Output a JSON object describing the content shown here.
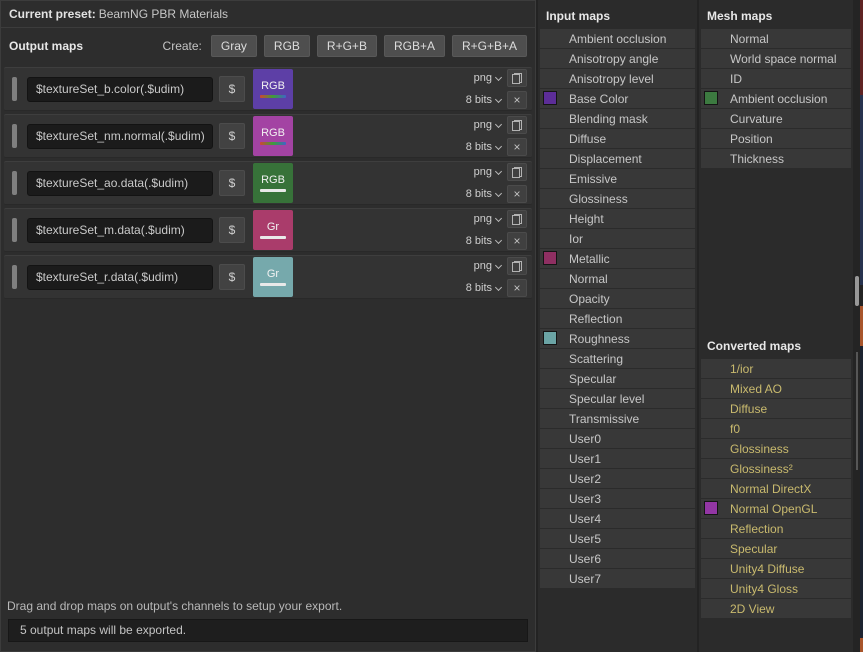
{
  "preset": {
    "label": "Current preset:",
    "value": "BeamNG PBR Materials"
  },
  "output_panel": {
    "title": "Output maps",
    "create_label": "Create:",
    "create_buttons": [
      "Gray",
      "RGB",
      "R+G+B",
      "RGB+A",
      "R+G+B+A"
    ],
    "dollar_label": "$",
    "rows": [
      {
        "filename": "$textureSet_b.color(.$udim)",
        "swatch_label": "RGB",
        "swatch_color": "#5d3fa6",
        "swatch_line": "rgb-gradient",
        "format": "png",
        "bit_depth": "8 bits"
      },
      {
        "filename": "$textureSet_nm.normal(.$udim)",
        "swatch_label": "RGB",
        "swatch_color": "#a343a3",
        "swatch_line": "rgb-gradient",
        "format": "png",
        "bit_depth": "8 bits"
      },
      {
        "filename": "$textureSet_ao.data(.$udim)",
        "swatch_label": "RGB",
        "swatch_color": "#377239",
        "swatch_line": "solid",
        "format": "png",
        "bit_depth": "8 bits"
      },
      {
        "filename": "$textureSet_m.data(.$udim)",
        "swatch_label": "Gr",
        "swatch_color": "#aa3c6b",
        "swatch_line": "solid",
        "format": "png",
        "bit_depth": "8 bits"
      },
      {
        "filename": "$textureSet_r.data(.$udim)",
        "swatch_label": "Gr",
        "swatch_color": "#76a9ac",
        "swatch_line": "solid",
        "format": "png",
        "bit_depth": "8 bits"
      }
    ],
    "hint": "Drag and drop maps on output's channels to setup your export.",
    "status": "5 output maps will be exported."
  },
  "input_maps": {
    "title": "Input maps",
    "items": [
      {
        "label": "Ambient occlusion"
      },
      {
        "label": "Anisotropy angle"
      },
      {
        "label": "Anisotropy level"
      },
      {
        "label": "Base Color",
        "swatch": "#5c2d98"
      },
      {
        "label": "Blending mask"
      },
      {
        "label": "Diffuse"
      },
      {
        "label": "Displacement"
      },
      {
        "label": "Emissive"
      },
      {
        "label": "Glossiness"
      },
      {
        "label": "Height"
      },
      {
        "label": "Ior"
      },
      {
        "label": "Metallic",
        "swatch": "#8f2f62"
      },
      {
        "label": "Normal"
      },
      {
        "label": "Opacity"
      },
      {
        "label": "Reflection"
      },
      {
        "label": "Roughness",
        "swatch": "#6ba4a5"
      },
      {
        "label": "Scattering"
      },
      {
        "label": "Specular"
      },
      {
        "label": "Specular level"
      },
      {
        "label": "Transmissive"
      },
      {
        "label": "User0"
      },
      {
        "label": "User1"
      },
      {
        "label": "User2"
      },
      {
        "label": "User3"
      },
      {
        "label": "User4"
      },
      {
        "label": "User5"
      },
      {
        "label": "User6"
      },
      {
        "label": "User7"
      }
    ]
  },
  "mesh_maps": {
    "title": "Mesh maps",
    "items": [
      {
        "label": "Normal"
      },
      {
        "label": "World space normal"
      },
      {
        "label": "ID"
      },
      {
        "label": "Ambient occlusion",
        "swatch": "#3c7a40"
      },
      {
        "label": "Curvature"
      },
      {
        "label": "Position"
      },
      {
        "label": "Thickness"
      }
    ]
  },
  "converted_maps": {
    "title": "Converted maps",
    "text_color": "#c9ba6e",
    "items": [
      {
        "label": "1/ior"
      },
      {
        "label": "Mixed AO"
      },
      {
        "label": "Diffuse"
      },
      {
        "label": "f0"
      },
      {
        "label": "Glossiness"
      },
      {
        "label": "Glossiness²"
      },
      {
        "label": "Normal DirectX"
      },
      {
        "label": "Normal OpenGL",
        "swatch": "#9336a4"
      },
      {
        "label": "Reflection"
      },
      {
        "label": "Specular"
      },
      {
        "label": "Unity4 Diffuse"
      },
      {
        "label": "Unity4 Gloss"
      },
      {
        "label": "2D View"
      }
    ]
  }
}
